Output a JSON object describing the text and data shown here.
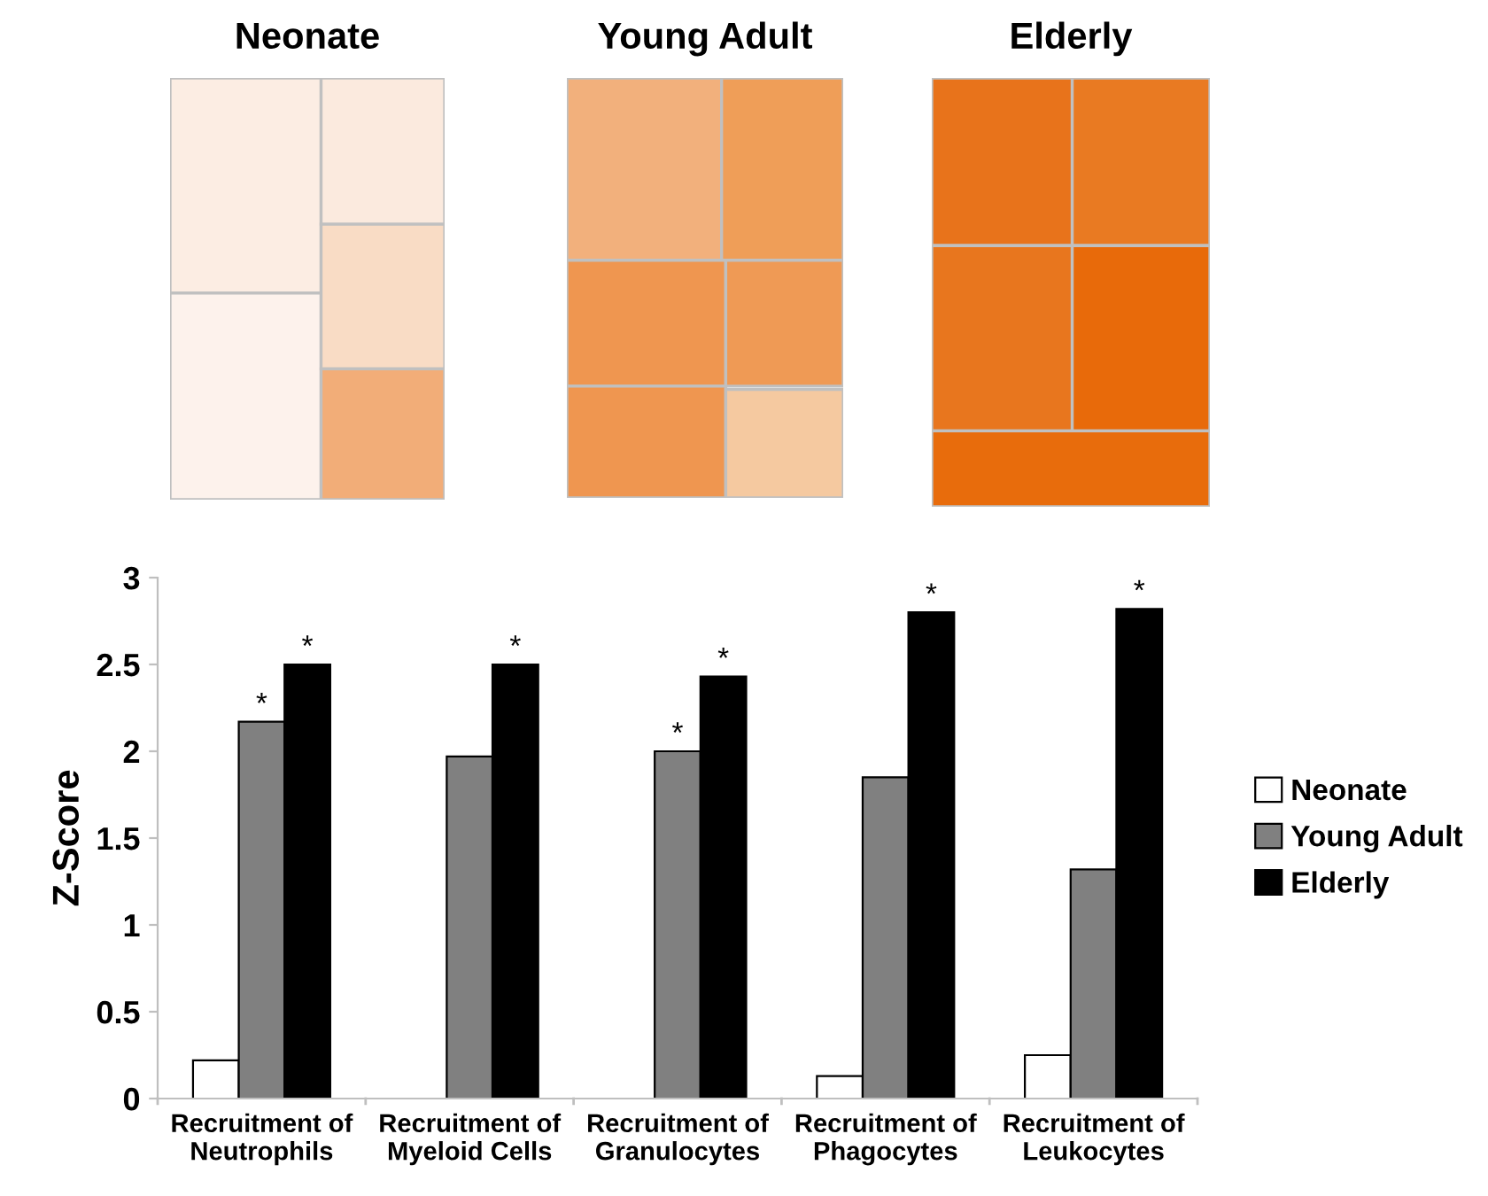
{
  "chart_data": [
    {
      "type": "other",
      "title": "Neonate"
    },
    {
      "type": "other",
      "title": "Young Adult"
    },
    {
      "type": "other",
      "title": "Elderly"
    },
    {
      "type": "bar",
      "ylabel": "Z-Score",
      "categories": [
        "Recruitment of\nNeutrophils",
        "Recruitment of\nMyeloid Cells",
        "Recruitment of\nGranulocytes",
        "Recruitment of\nPhagocytes",
        "Recruitment of\nLeukocytes"
      ],
      "series": [
        {
          "name": "Neonate",
          "color": "#ffffff",
          "values": [
            0.22,
            0,
            0,
            0.13,
            0.25
          ]
        },
        {
          "name": "Young Adult",
          "color": "#808080",
          "values": [
            2.17,
            1.97,
            2.0,
            1.85,
            1.32
          ],
          "value_labels": [
            "*",
            null,
            "*",
            null,
            null
          ]
        },
        {
          "name": "Elderly",
          "color": "#000000",
          "values": [
            2.5,
            2.5,
            2.43,
            2.8,
            2.82
          ],
          "value_labels": [
            "*",
            "*",
            "*",
            "*",
            "*"
          ]
        }
      ],
      "ylim": [
        0,
        3
      ],
      "yticks": [
        0,
        0.5,
        1,
        1.5,
        2,
        2.5,
        3
      ],
      "grid": false,
      "legend": "right"
    }
  ]
}
